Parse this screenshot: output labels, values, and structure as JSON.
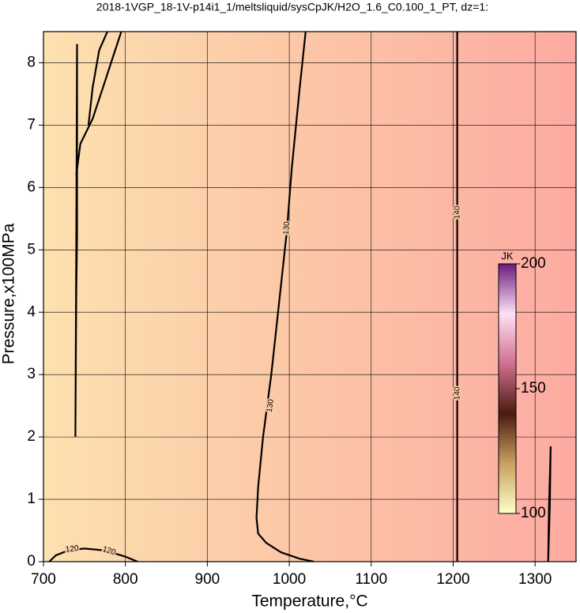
{
  "chart_data": {
    "type": "contour",
    "title": "2018-1VGP_18-1V-p14i1_1/meltsliquid/sysCpJK/H2O_1.6_C0.100_1_PT, dz=1:",
    "x_label": "Temperature,°C",
    "y_label": "Pressure,x100MPa",
    "xlim": [
      700,
      1350
    ],
    "ylim": [
      0,
      8.5
    ],
    "xticks": [
      700,
      800,
      900,
      1000,
      1100,
      1200,
      1300
    ],
    "yticks": [
      0,
      1,
      2,
      3,
      4,
      5,
      6,
      7,
      8
    ],
    "grid": true,
    "fill_colors": [
      "#fde0b0",
      "#fcc6a6",
      "#fdaaa2"
    ],
    "contours": [
      {
        "level": 120,
        "x": [
          707,
          715,
          730,
          750,
          775,
          800,
          815
        ],
        "y": [
          0,
          0.1,
          0.18,
          0.21,
          0.18,
          0.08,
          0
        ],
        "labels": [
          {
            "x": 735,
            "y": 0.2
          },
          {
            "x": 780,
            "y": 0.17
          }
        ]
      },
      {
        "level": 130,
        "x": [
          1020,
          1012,
          1003,
          997,
          988,
          978,
          968,
          962,
          960,
          962,
          972,
          990,
          1012,
          1030
        ],
        "y": [
          8.5,
          7.5,
          6.3,
          5.3,
          4.2,
          3.0,
          2.0,
          1.2,
          0.7,
          0.45,
          0.3,
          0.15,
          0.05,
          0
        ],
        "labels": [
          {
            "x": 997,
            "y": 5.35
          },
          {
            "x": 977,
            "y": 2.5
          }
        ]
      },
      {
        "level": 140,
        "x": [
          1205,
          1205
        ],
        "y": [
          0,
          8.5
        ],
        "labels": [
          {
            "x": 1205,
            "y": 5.6
          },
          {
            "x": 1205,
            "y": 2.7
          }
        ]
      },
      {
        "x": [
          739,
          740,
          741,
          741,
          740,
          739
        ],
        "y": [
          2.0,
          4.3,
          5.2,
          8.3,
          5.0,
          2.0
        ],
        "labels": []
      },
      {
        "x": [
          740,
          745,
          760,
          775,
          785,
          795
        ],
        "y": [
          6.2,
          6.7,
          7.1,
          7.7,
          8.1,
          8.5
        ],
        "labels": []
      },
      {
        "x": [
          755,
          760,
          768,
          778
        ],
        "y": [
          7.0,
          7.6,
          8.2,
          8.5
        ],
        "labels": []
      },
      {
        "x": [
          1316,
          1318,
          1319,
          1317,
          1316
        ],
        "y": [
          0,
          0.9,
          1.85,
          0.9,
          0
        ],
        "labels": []
      }
    ],
    "colorbar": {
      "label": "JK",
      "lim": [
        100,
        200
      ],
      "ticks": [
        100,
        150,
        200
      ],
      "colors": [
        "#ffffc8",
        "#c8a060",
        "#4a1a10",
        "#d07090",
        "#ffe0f4",
        "#6a1a80"
      ]
    }
  }
}
